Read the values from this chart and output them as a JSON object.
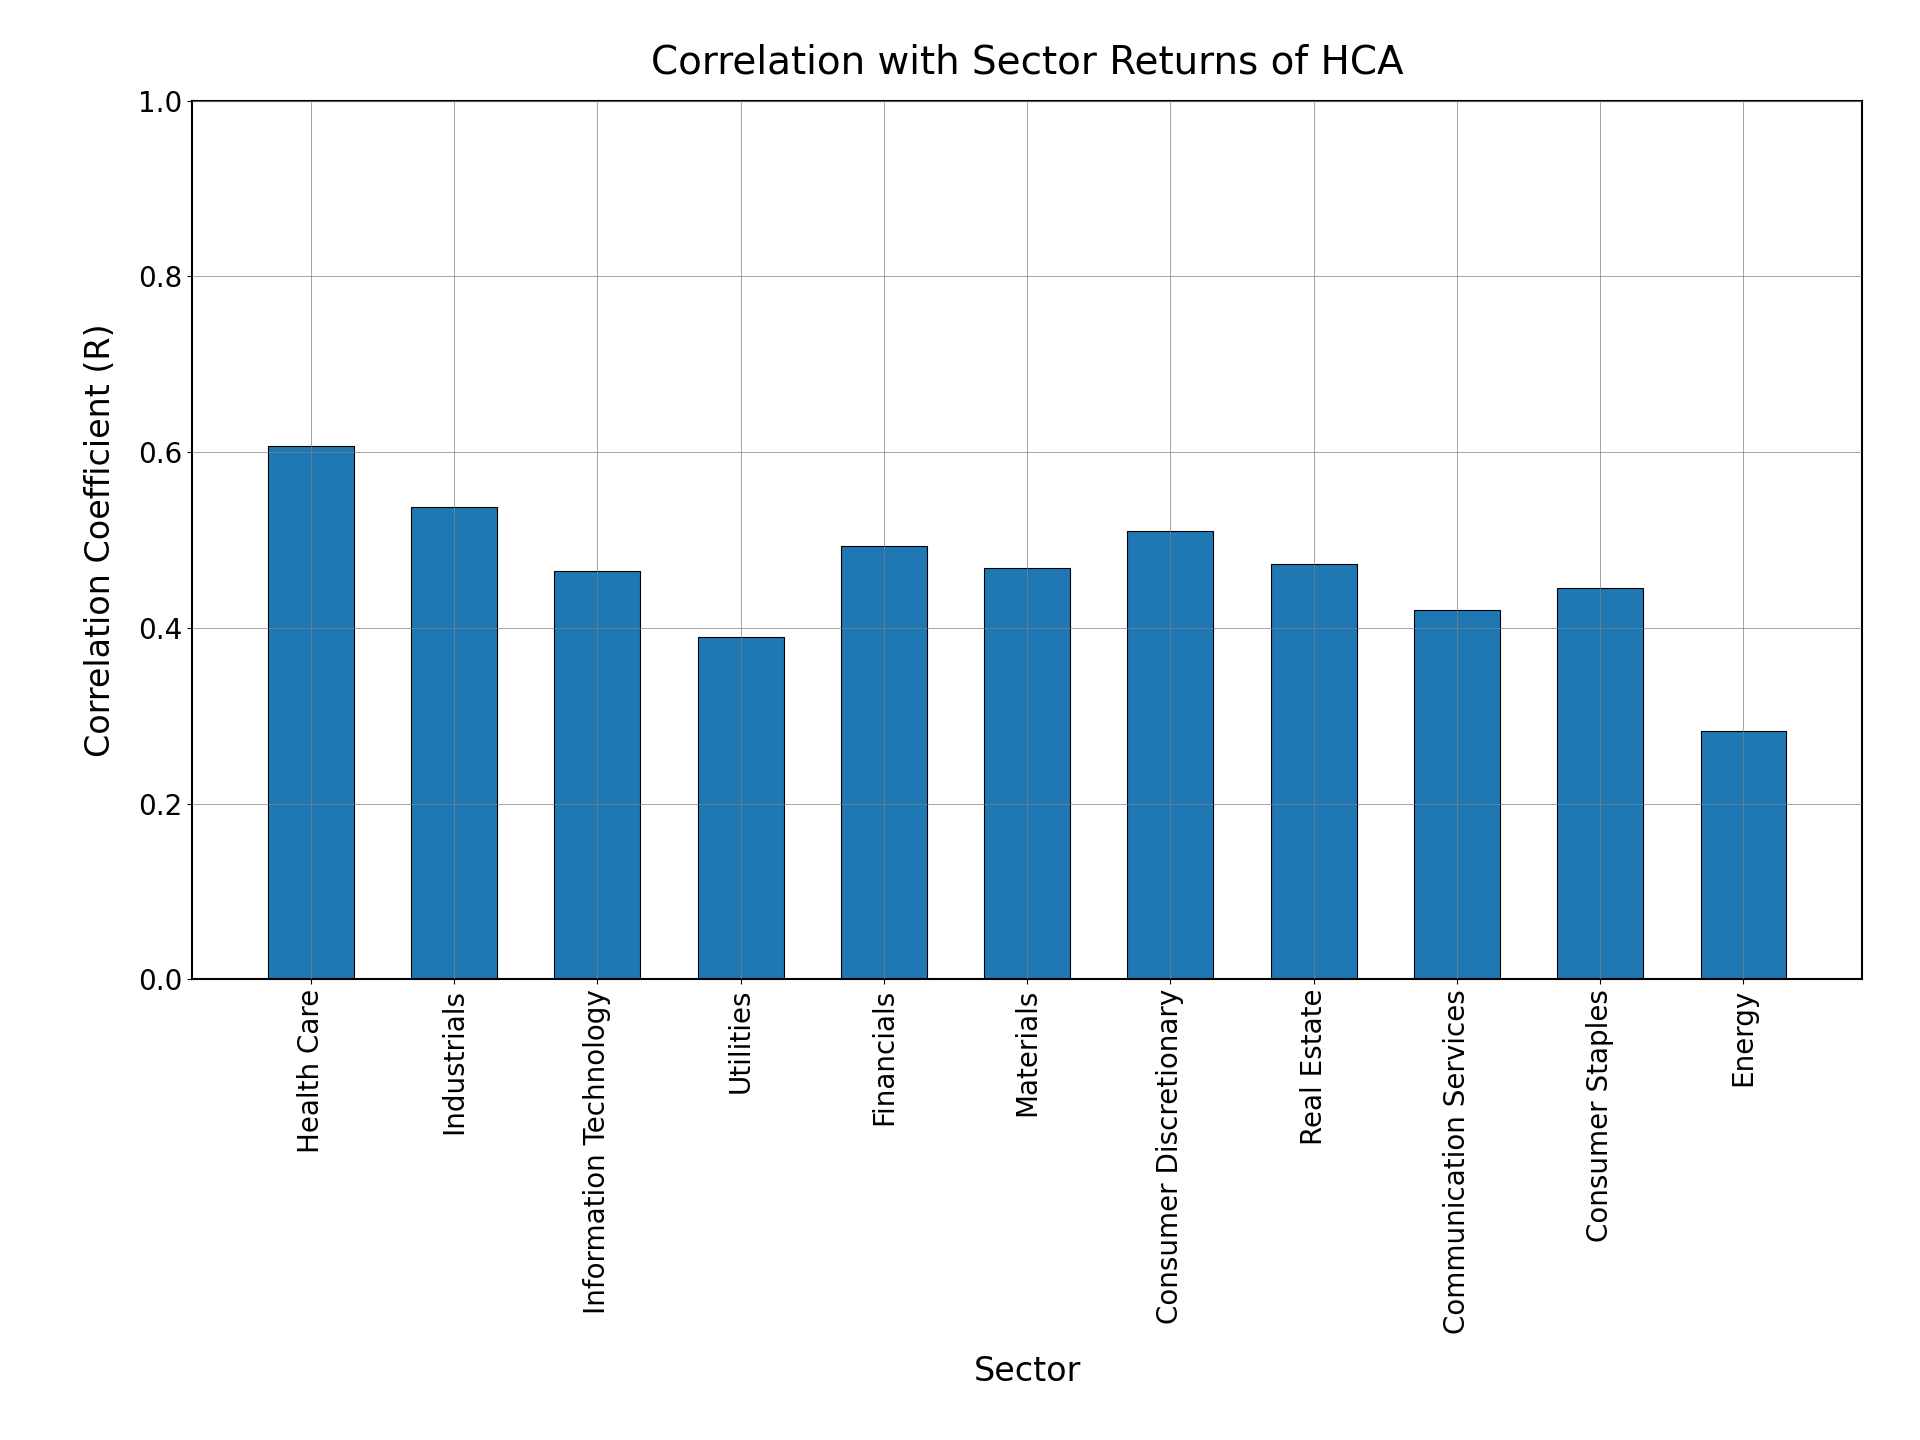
{
  "title": "Correlation with Sector Returns of HCA",
  "xlabel": "Sector",
  "ylabel": "Correlation Coefficient (R)",
  "categories": [
    "Health Care",
    "Industrials",
    "Information Technology",
    "Utilities",
    "Financials",
    "Materials",
    "Consumer Discretionary",
    "Real Estate",
    "Communication Services",
    "Consumer Staples",
    "Energy"
  ],
  "values": [
    0.607,
    0.537,
    0.465,
    0.39,
    0.493,
    0.468,
    0.51,
    0.473,
    0.42,
    0.445,
    0.283
  ],
  "bar_color": "#1f77b4",
  "ylim": [
    0.0,
    1.0
  ],
  "yticks": [
    0.0,
    0.2,
    0.4,
    0.6,
    0.8,
    1.0
  ],
  "title_fontsize": 28,
  "axis_label_fontsize": 24,
  "tick_label_fontsize": 20,
  "background_color": "#ffffff",
  "grid": true,
  "bar_width": 0.6
}
